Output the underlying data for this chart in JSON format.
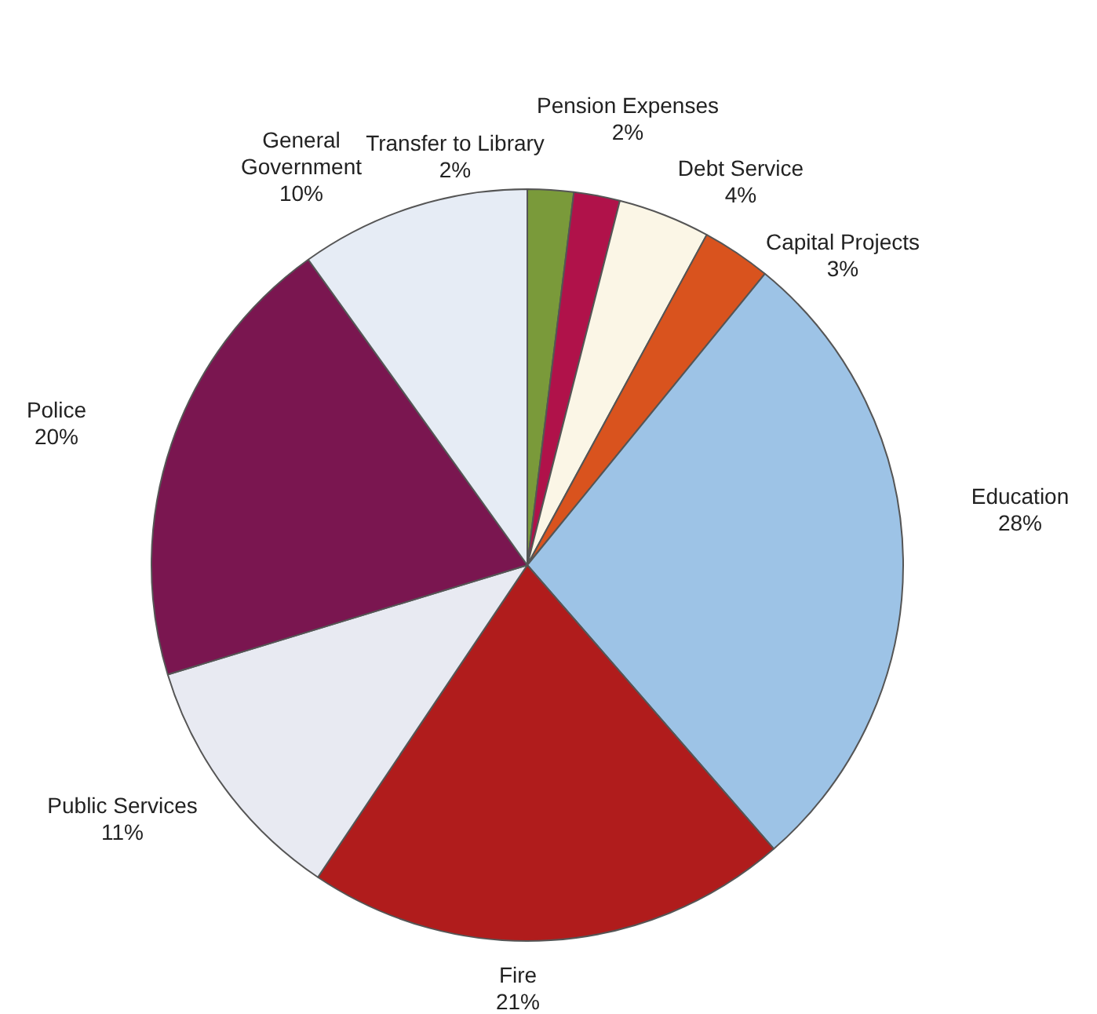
{
  "chart_data": {
    "type": "pie",
    "categories": [
      "Transfer to Library",
      "Pension Expenses",
      "Debt Service",
      "Capital Projects",
      "Education",
      "Fire",
      "Public Services",
      "Police",
      "General Government"
    ],
    "values": [
      2,
      2,
      4,
      3,
      28,
      21,
      11,
      20,
      10
    ],
    "colors": [
      "#7a9a3a",
      "#b0124a",
      "#fbf6e6",
      "#d9531e",
      "#9dc3e6",
      "#b01c1c",
      "#e8eaf2",
      "#7a1650",
      "#e6ecf5"
    ],
    "value_labels": [
      "2%",
      "2%",
      "4%",
      "3%",
      "28%",
      "21%",
      "11%",
      "20%",
      "10%"
    ],
    "legend": false
  }
}
